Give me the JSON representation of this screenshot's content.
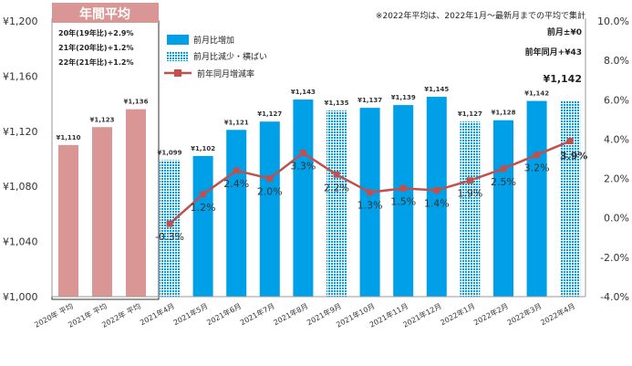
{
  "chart_data": {
    "type": "bar",
    "top_note": "※2022年平均は、2022年1月～最新月までの平均で集計",
    "annual_box": {
      "title": "年間平均",
      "lines": [
        "20年(19年比)+2.9%",
        "21年(20年比)+1.2%",
        "22年(21年比)+1.2%"
      ]
    },
    "right_notes": [
      "前月±¥0",
      "前年同月+¥43"
    ],
    "latest_value_label": "¥1,142",
    "legend": {
      "increase": "前月比増加",
      "decrease": "前月比減少・横ばい",
      "line": "前年同月増減率"
    },
    "colors": {
      "annual": "#d99694",
      "increase": "#00a0e9",
      "decrease": "#00a0e9",
      "line": "#c0504d",
      "negative_label": "#e03030"
    },
    "y_left": {
      "min": 1000,
      "max": 1200,
      "ticks": [
        {
          "v": 1000,
          "label": "¥1,000"
        },
        {
          "v": 1040,
          "label": "¥1,040"
        },
        {
          "v": 1080,
          "label": "¥1,080"
        },
        {
          "v": 1120,
          "label": "¥1,120"
        },
        {
          "v": 1160,
          "label": "¥1,160"
        },
        {
          "v": 1200,
          "label": "¥1,200"
        }
      ]
    },
    "y_right": {
      "min": -4,
      "max": 10,
      "ticks": [
        {
          "v": -4,
          "label": "-4.0%"
        },
        {
          "v": -2,
          "label": "-2.0%"
        },
        {
          "v": 0,
          "label": "0.0%"
        },
        {
          "v": 2,
          "label": "2.0%"
        },
        {
          "v": 4,
          "label": "4.0%"
        },
        {
          "v": 6,
          "label": "6.0%"
        },
        {
          "v": 8,
          "label": "8.0%"
        },
        {
          "v": 10,
          "label": "10.0%"
        }
      ]
    },
    "annual_bars": [
      {
        "category": "2020年 平均",
        "value": 1110,
        "label": "¥1,110"
      },
      {
        "category": "2021年 平均",
        "value": 1123,
        "label": "¥1,123"
      },
      {
        "category": "2022年 平均",
        "value": 1136,
        "label": "¥1,136"
      }
    ],
    "monthly_bars": [
      {
        "category": "2021年4月",
        "value": 1099,
        "label": "¥1,099",
        "kind": "decrease",
        "yoy": -0.3,
        "yoy_label": "-0.3%"
      },
      {
        "category": "2021年5月",
        "value": 1102,
        "label": "¥1,102",
        "kind": "increase",
        "yoy": 1.2,
        "yoy_label": "1.2%"
      },
      {
        "category": "2021年6月",
        "value": 1121,
        "label": "¥1,121",
        "kind": "increase",
        "yoy": 2.4,
        "yoy_label": "2.4%"
      },
      {
        "category": "2021年7月",
        "value": 1127,
        "label": "¥1,127",
        "kind": "increase",
        "yoy": 2.0,
        "yoy_label": "2.0%"
      },
      {
        "category": "2021年8月",
        "value": 1143,
        "label": "¥1,143",
        "kind": "increase",
        "yoy": 3.3,
        "yoy_label": "3.3%"
      },
      {
        "category": "2021年9月",
        "value": 1135,
        "label": "¥1,135",
        "kind": "decrease",
        "yoy": 2.2,
        "yoy_label": "2.2%"
      },
      {
        "category": "2021年10月",
        "value": 1137,
        "label": "¥1,137",
        "kind": "increase",
        "yoy": 1.3,
        "yoy_label": "1.3%"
      },
      {
        "category": "2021年11月",
        "value": 1139,
        "label": "¥1,139",
        "kind": "increase",
        "yoy": 1.5,
        "yoy_label": "1.5%"
      },
      {
        "category": "2021年12月",
        "value": 1145,
        "label": "¥1,145",
        "kind": "increase",
        "yoy": 1.4,
        "yoy_label": "1.4%"
      },
      {
        "category": "2022年1月",
        "value": 1127,
        "label": "¥1,127",
        "kind": "decrease",
        "yoy": 1.9,
        "yoy_label": "1.9%"
      },
      {
        "category": "2022年2月",
        "value": 1128,
        "label": "¥1,128",
        "kind": "increase",
        "yoy": 2.5,
        "yoy_label": "2.5%"
      },
      {
        "category": "2022年3月",
        "value": 1142,
        "label": "¥1,142",
        "kind": "increase",
        "yoy": 3.2,
        "yoy_label": "3.2%"
      },
      {
        "category": "2022年4月",
        "value": 1142,
        "label": "",
        "kind": "decrease",
        "yoy": 3.9,
        "yoy_label": "3.9%"
      }
    ]
  }
}
